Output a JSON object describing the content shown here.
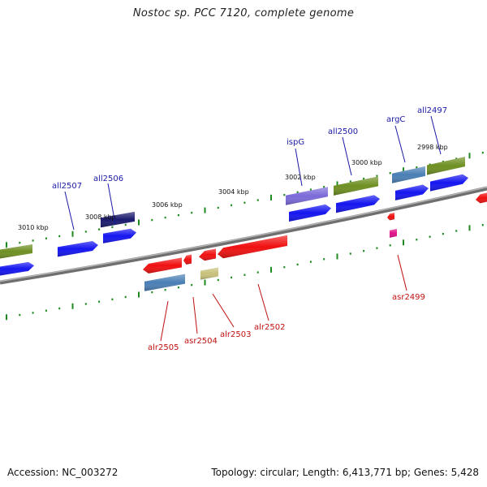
{
  "title": "Nostoc sp. PCC 7120, complete genome",
  "footer": {
    "accession": "Accession: NC_003272",
    "summary": "Topology: circular; Length: 6,413,771 bp; Genes: 5,428"
  },
  "colors": {
    "backbone": "#8a8a8a",
    "tick": "#1f8a1f",
    "forward_label": "#1a1aa6",
    "reverse_label": "#c01010",
    "blue": "#1515f0",
    "olive": "#6e8f22",
    "steel": "#4a7fb5",
    "navy": "#1a1a6e",
    "lavender": "#7a6ad8",
    "red": "#f01010",
    "khaki": "#c8c07a",
    "magenta": "#e0108a"
  },
  "kbp_marks": [
    "3010 kbp",
    "3008 kbp",
    "3006 kbp",
    "3004 kbp",
    "3002 kbp",
    "3000 kbp",
    "2998 kbp"
  ],
  "gene_labels": [
    {
      "text": "all2507",
      "strand": "forward"
    },
    {
      "text": "all2506",
      "strand": "forward"
    },
    {
      "text": "ispG",
      "strand": "forward"
    },
    {
      "text": "all2500",
      "strand": "forward"
    },
    {
      "text": "argC",
      "strand": "forward"
    },
    {
      "text": "all2497",
      "strand": "forward"
    },
    {
      "text": "alr2505",
      "strand": "reverse"
    },
    {
      "text": "asr2504",
      "strand": "reverse"
    },
    {
      "text": "alr2503",
      "strand": "reverse"
    },
    {
      "text": "alr2502",
      "strand": "reverse"
    },
    {
      "text": "asr2499",
      "strand": "reverse"
    }
  ]
}
